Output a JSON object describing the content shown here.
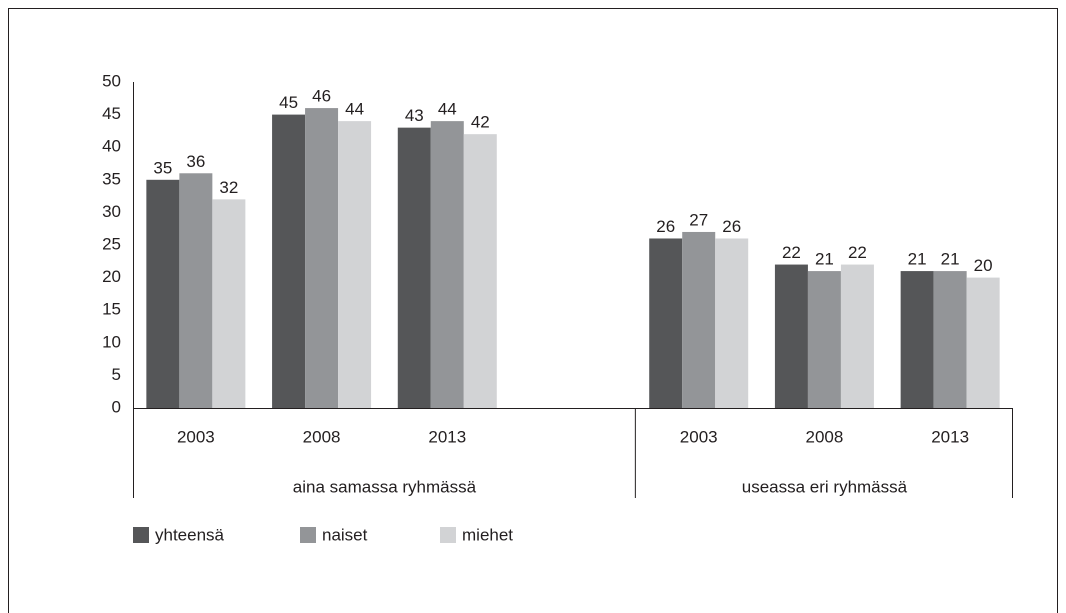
{
  "chart_data": {
    "type": "bar",
    "categories": [
      "2003",
      "2008",
      "2013",
      null,
      "2003",
      "2008",
      "2013"
    ],
    "category_groups": [
      "aina samassa ryhmässä",
      "aina samassa ryhmässä",
      "aina samassa ryhmässä",
      "aina samassa ryhmässä",
      "useassa eri ryhmässä",
      "useassa eri ryhmässä",
      "useassa eri ryhmässä"
    ],
    "series": [
      {
        "name": "yhteensä",
        "color": "#555658",
        "values": [
          35,
          45,
          43,
          null,
          26,
          22,
          21
        ]
      },
      {
        "name": "naiset",
        "color": "#939598",
        "values": [
          36,
          46,
          44,
          null,
          27,
          21,
          21
        ]
      },
      {
        "name": "miehet",
        "color": "#d2d3d5",
        "values": [
          32,
          44,
          42,
          null,
          26,
          22,
          20
        ]
      }
    ],
    "ylim": [
      0,
      50
    ],
    "yticks": [
      0,
      5,
      10,
      15,
      20,
      25,
      30,
      35,
      40,
      45,
      50
    ],
    "grid": false,
    "legend": "bottom-left"
  }
}
